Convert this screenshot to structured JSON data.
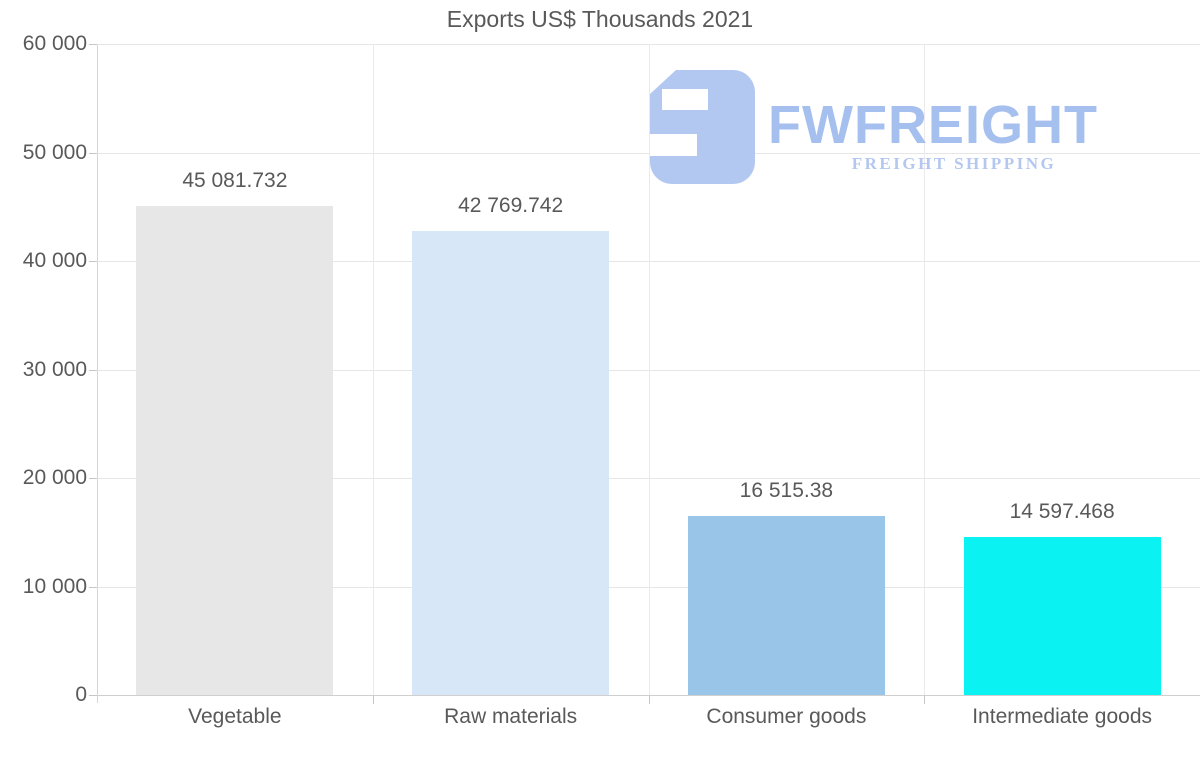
{
  "chart_data": {
    "type": "bar",
    "title": "Exports US$ Thousands 2021",
    "categories": [
      "Vegetable",
      "Raw materials",
      "Consumer goods",
      "Intermediate goods"
    ],
    "values": [
      45081.732,
      42769.742,
      16515.38,
      14597.468
    ],
    "value_labels": [
      "45 081.732",
      "42 769.742",
      "16 515.38",
      "14 597.468"
    ],
    "bar_colors": [
      "#e7e7e7",
      "#d7e7f8",
      "#99c5e8",
      "#0af2f2"
    ],
    "ylim": [
      0,
      60000
    ],
    "ytick_values": [
      0,
      10000,
      20000,
      30000,
      40000,
      50000,
      60000
    ],
    "ytick_labels": [
      "0",
      "10 000",
      "20 000",
      "30 000",
      "40 000",
      "50 000",
      "60 000"
    ],
    "xlabel": "",
    "ylabel": "",
    "legend": "none",
    "grid": "horizontal gridlines every 10 000 plus vertical category separators"
  },
  "watermark": {
    "name": "FWFREIGHT",
    "tagline": "FREIGHT SHIPPING"
  },
  "colors": {
    "background": "#ffffff",
    "text": "#595959",
    "gridline": "#e6e6e6",
    "axis": "#c6c6c6",
    "logo_blue": "#a5bfee",
    "logo_mark_blue": "#b2c8f1"
  }
}
